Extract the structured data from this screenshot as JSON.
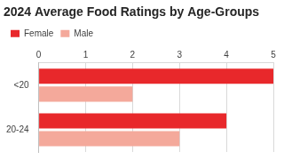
{
  "chart_data": {
    "type": "bar",
    "title": "2024 Average Food Ratings by Age-Groups",
    "orientation": "horizontal",
    "categories": [
      "<20",
      "20-24"
    ],
    "series": [
      {
        "name": "Female",
        "color": "#e8282b",
        "values": [
          5,
          4
        ]
      },
      {
        "name": "Male",
        "color": "#f4a99b",
        "values": [
          2,
          3
        ]
      }
    ],
    "xlim": [
      0,
      5
    ],
    "xticks": [
      0,
      1,
      2,
      3,
      4,
      5
    ],
    "grid": true,
    "legend": "top-left"
  }
}
